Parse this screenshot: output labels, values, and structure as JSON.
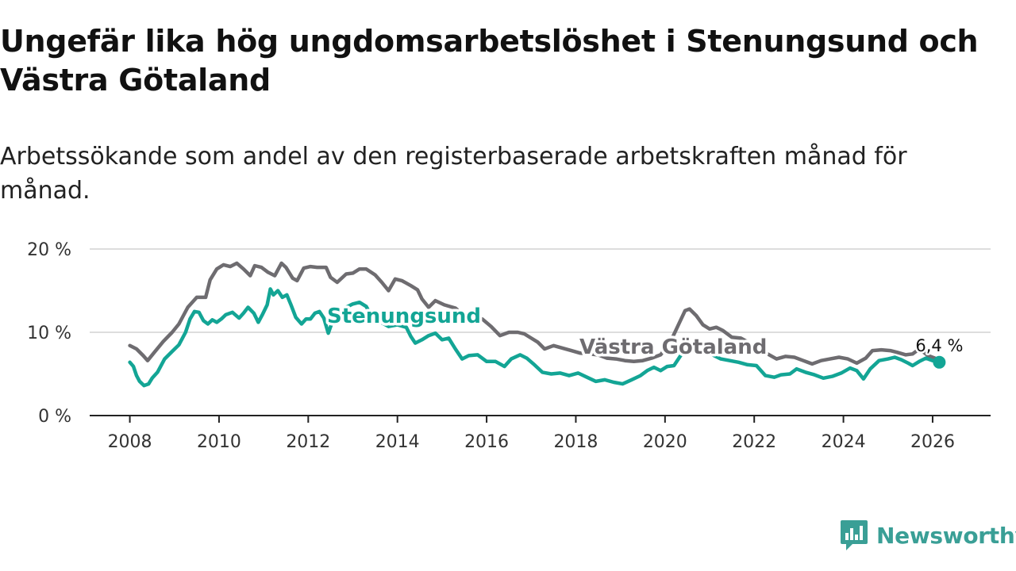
{
  "title": "Ungefär lika hög ungdomsarbetslöshet i Stenungsund och Västra Götaland",
  "subtitle": "Arbetssökande som andel av den registerbaserade arbetskraften månad för månad.",
  "brand": {
    "name": "Newsworthy",
    "color": "#3a9f96",
    "icon": "bar-chart-speech-bubble-icon"
  },
  "colors": {
    "stenungsund": "#13a595",
    "vastra_gotaland": "#6e6c70",
    "grid": "#dddddd",
    "axis": "#222222"
  },
  "chart_data": {
    "type": "line",
    "title": "Ungefär lika hög ungdomsarbetslöshet i Stenungsund och Västra Götaland",
    "xlabel": "",
    "ylabel": "",
    "x_ticks": [
      2008,
      2010,
      2012,
      2014,
      2016,
      2018,
      2020,
      2022,
      2024,
      2026
    ],
    "x_tick_labels": [
      "2008",
      "2010",
      "2012",
      "2014",
      "2016",
      "2018",
      "2020",
      "2022",
      "2024",
      "2026"
    ],
    "y_ticks": [
      0,
      10,
      20
    ],
    "y_tick_labels": [
      "0 %",
      "10 %",
      "20 %"
    ],
    "xlim": [
      2007.1,
      2027.3
    ],
    "ylim": [
      0,
      20
    ],
    "grid": true,
    "end_label": "6,4 %",
    "series": [
      {
        "name": "Västra Götaland",
        "label": "Västra Götaland",
        "color": "#6e6c70",
        "points": [
          [
            2008.0,
            8.4
          ],
          [
            2008.15,
            8.0
          ],
          [
            2008.3,
            7.2
          ],
          [
            2008.4,
            6.6
          ],
          [
            2008.55,
            7.6
          ],
          [
            2008.75,
            8.9
          ],
          [
            2008.95,
            10.0
          ],
          [
            2009.1,
            11.0
          ],
          [
            2009.3,
            13.0
          ],
          [
            2009.5,
            14.2
          ],
          [
            2009.7,
            14.2
          ],
          [
            2009.8,
            16.3
          ],
          [
            2009.95,
            17.6
          ],
          [
            2010.1,
            18.1
          ],
          [
            2010.25,
            17.9
          ],
          [
            2010.4,
            18.3
          ],
          [
            2010.55,
            17.6
          ],
          [
            2010.7,
            16.8
          ],
          [
            2010.8,
            18.0
          ],
          [
            2010.95,
            17.8
          ],
          [
            2011.1,
            17.2
          ],
          [
            2011.25,
            16.8
          ],
          [
            2011.4,
            18.3
          ],
          [
            2011.5,
            17.8
          ],
          [
            2011.65,
            16.5
          ],
          [
            2011.75,
            16.2
          ],
          [
            2011.9,
            17.7
          ],
          [
            2012.05,
            17.9
          ],
          [
            2012.2,
            17.8
          ],
          [
            2012.4,
            17.8
          ],
          [
            2012.5,
            16.6
          ],
          [
            2012.65,
            16.0
          ],
          [
            2012.85,
            17.0
          ],
          [
            2013.0,
            17.1
          ],
          [
            2013.15,
            17.6
          ],
          [
            2013.3,
            17.6
          ],
          [
            2013.5,
            16.9
          ],
          [
            2013.65,
            16.0
          ],
          [
            2013.8,
            15.0
          ],
          [
            2013.95,
            16.4
          ],
          [
            2014.1,
            16.2
          ],
          [
            2014.3,
            15.6
          ],
          [
            2014.45,
            15.1
          ],
          [
            2014.55,
            14.0
          ],
          [
            2014.7,
            13.0
          ],
          [
            2014.85,
            13.8
          ],
          [
            2015.05,
            13.3
          ],
          [
            2015.3,
            12.9
          ],
          [
            2015.5,
            12.0
          ],
          [
            2015.7,
            11.5
          ],
          [
            2015.9,
            11.6
          ],
          [
            2016.1,
            10.7
          ],
          [
            2016.3,
            9.6
          ],
          [
            2016.5,
            10.0
          ],
          [
            2016.7,
            10.0
          ],
          [
            2016.85,
            9.8
          ],
          [
            2017.0,
            9.3
          ],
          [
            2017.15,
            8.8
          ],
          [
            2017.3,
            8.0
          ],
          [
            2017.5,
            8.4
          ],
          [
            2017.7,
            8.1
          ],
          [
            2017.9,
            7.8
          ],
          [
            2018.1,
            7.5
          ],
          [
            2018.3,
            7.4
          ],
          [
            2018.5,
            7.3
          ],
          [
            2018.7,
            6.9
          ],
          [
            2018.9,
            6.8
          ],
          [
            2019.1,
            6.6
          ],
          [
            2019.3,
            6.5
          ],
          [
            2019.5,
            6.6
          ],
          [
            2019.7,
            6.9
          ],
          [
            2019.9,
            7.3
          ],
          [
            2020.1,
            8.6
          ],
          [
            2020.3,
            10.9
          ],
          [
            2020.45,
            12.6
          ],
          [
            2020.55,
            12.8
          ],
          [
            2020.7,
            12.0
          ],
          [
            2020.85,
            10.9
          ],
          [
            2021.0,
            10.4
          ],
          [
            2021.15,
            10.6
          ],
          [
            2021.3,
            10.2
          ],
          [
            2021.5,
            9.4
          ],
          [
            2021.7,
            9.3
          ],
          [
            2021.9,
            8.7
          ],
          [
            2022.1,
            7.4
          ],
          [
            2022.3,
            7.4
          ],
          [
            2022.5,
            6.8
          ],
          [
            2022.7,
            7.1
          ],
          [
            2022.9,
            7.0
          ],
          [
            2023.1,
            6.6
          ],
          [
            2023.3,
            6.2
          ],
          [
            2023.5,
            6.6
          ],
          [
            2023.7,
            6.8
          ],
          [
            2023.9,
            7.0
          ],
          [
            2024.1,
            6.8
          ],
          [
            2024.3,
            6.3
          ],
          [
            2024.5,
            6.9
          ],
          [
            2024.65,
            7.8
          ],
          [
            2024.85,
            7.9
          ],
          [
            2025.05,
            7.8
          ],
          [
            2025.2,
            7.6
          ],
          [
            2025.4,
            7.3
          ],
          [
            2025.55,
            7.4
          ],
          [
            2025.7,
            8.0
          ],
          [
            2025.9,
            7.2
          ],
          [
            2026.05,
            6.9
          ],
          [
            2026.15,
            6.5
          ]
        ]
      },
      {
        "name": "Stenungsund",
        "label": "Stenungsund",
        "color": "#13a595",
        "points": [
          [
            2008.0,
            6.4
          ],
          [
            2008.08,
            5.9
          ],
          [
            2008.15,
            4.8
          ],
          [
            2008.22,
            4.1
          ],
          [
            2008.32,
            3.6
          ],
          [
            2008.42,
            3.8
          ],
          [
            2008.5,
            4.5
          ],
          [
            2008.62,
            5.2
          ],
          [
            2008.78,
            6.8
          ],
          [
            2008.95,
            7.7
          ],
          [
            2009.1,
            8.5
          ],
          [
            2009.25,
            10.0
          ],
          [
            2009.35,
            11.6
          ],
          [
            2009.45,
            12.5
          ],
          [
            2009.55,
            12.4
          ],
          [
            2009.65,
            11.4
          ],
          [
            2009.75,
            11.0
          ],
          [
            2009.85,
            11.5
          ],
          [
            2009.95,
            11.2
          ],
          [
            2010.05,
            11.6
          ],
          [
            2010.15,
            12.1
          ],
          [
            2010.3,
            12.4
          ],
          [
            2010.45,
            11.7
          ],
          [
            2010.55,
            12.3
          ],
          [
            2010.65,
            13.0
          ],
          [
            2010.78,
            12.3
          ],
          [
            2010.88,
            11.2
          ],
          [
            2010.98,
            12.2
          ],
          [
            2011.08,
            13.3
          ],
          [
            2011.15,
            15.2
          ],
          [
            2011.22,
            14.5
          ],
          [
            2011.32,
            15.0
          ],
          [
            2011.42,
            14.2
          ],
          [
            2011.52,
            14.5
          ],
          [
            2011.62,
            13.2
          ],
          [
            2011.72,
            11.8
          ],
          [
            2011.85,
            11.0
          ],
          [
            2011.95,
            11.6
          ],
          [
            2012.05,
            11.6
          ],
          [
            2012.15,
            12.3
          ],
          [
            2012.25,
            12.5
          ],
          [
            2012.35,
            11.7
          ],
          [
            2012.45,
            9.9
          ],
          [
            2012.55,
            11.4
          ],
          [
            2012.7,
            12.3
          ],
          [
            2012.85,
            13.0
          ],
          [
            2013.0,
            13.4
          ],
          [
            2013.15,
            13.6
          ],
          [
            2013.3,
            13.1
          ],
          [
            2013.45,
            11.6
          ],
          [
            2013.6,
            11.3
          ],
          [
            2013.8,
            10.7
          ],
          [
            2014.0,
            10.9
          ],
          [
            2014.2,
            10.6
          ],
          [
            2014.3,
            9.5
          ],
          [
            2014.4,
            8.7
          ],
          [
            2014.55,
            9.1
          ],
          [
            2014.7,
            9.6
          ],
          [
            2014.85,
            9.9
          ],
          [
            2015.0,
            9.1
          ],
          [
            2015.15,
            9.3
          ],
          [
            2015.3,
            8.0
          ],
          [
            2015.45,
            6.8
          ],
          [
            2015.6,
            7.2
          ],
          [
            2015.8,
            7.3
          ],
          [
            2016.0,
            6.5
          ],
          [
            2016.2,
            6.5
          ],
          [
            2016.4,
            5.9
          ],
          [
            2016.55,
            6.8
          ],
          [
            2016.75,
            7.3
          ],
          [
            2016.9,
            6.9
          ],
          [
            2017.05,
            6.2
          ],
          [
            2017.25,
            5.2
          ],
          [
            2017.45,
            5.0
          ],
          [
            2017.65,
            5.1
          ],
          [
            2017.85,
            4.8
          ],
          [
            2018.05,
            5.1
          ],
          [
            2018.25,
            4.6
          ],
          [
            2018.45,
            4.1
          ],
          [
            2018.65,
            4.3
          ],
          [
            2018.85,
            4.0
          ],
          [
            2019.05,
            3.8
          ],
          [
            2019.25,
            4.3
          ],
          [
            2019.45,
            4.8
          ],
          [
            2019.6,
            5.4
          ],
          [
            2019.75,
            5.8
          ],
          [
            2019.9,
            5.4
          ],
          [
            2020.05,
            5.9
          ],
          [
            2020.2,
            6.0
          ],
          [
            2020.35,
            7.2
          ],
          [
            2020.5,
            8.2
          ],
          [
            2020.65,
            8.0
          ],
          [
            2020.8,
            7.4
          ],
          [
            2020.95,
            7.6
          ],
          [
            2021.1,
            7.2
          ],
          [
            2021.25,
            6.8
          ],
          [
            2021.45,
            6.6
          ],
          [
            2021.65,
            6.4
          ],
          [
            2021.85,
            6.1
          ],
          [
            2022.05,
            6.0
          ],
          [
            2022.25,
            4.8
          ],
          [
            2022.45,
            4.6
          ],
          [
            2022.6,
            4.9
          ],
          [
            2022.8,
            5.0
          ],
          [
            2022.95,
            5.6
          ],
          [
            2023.15,
            5.2
          ],
          [
            2023.35,
            4.9
          ],
          [
            2023.55,
            4.5
          ],
          [
            2023.75,
            4.7
          ],
          [
            2023.95,
            5.1
          ],
          [
            2024.15,
            5.7
          ],
          [
            2024.3,
            5.4
          ],
          [
            2024.45,
            4.4
          ],
          [
            2024.6,
            5.6
          ],
          [
            2024.8,
            6.6
          ],
          [
            2025.0,
            6.8
          ],
          [
            2025.15,
            7.0
          ],
          [
            2025.3,
            6.7
          ],
          [
            2025.45,
            6.3
          ],
          [
            2025.55,
            6.0
          ],
          [
            2025.7,
            6.5
          ],
          [
            2025.85,
            6.9
          ],
          [
            2026.0,
            6.6
          ],
          [
            2026.15,
            6.4
          ]
        ]
      }
    ]
  }
}
